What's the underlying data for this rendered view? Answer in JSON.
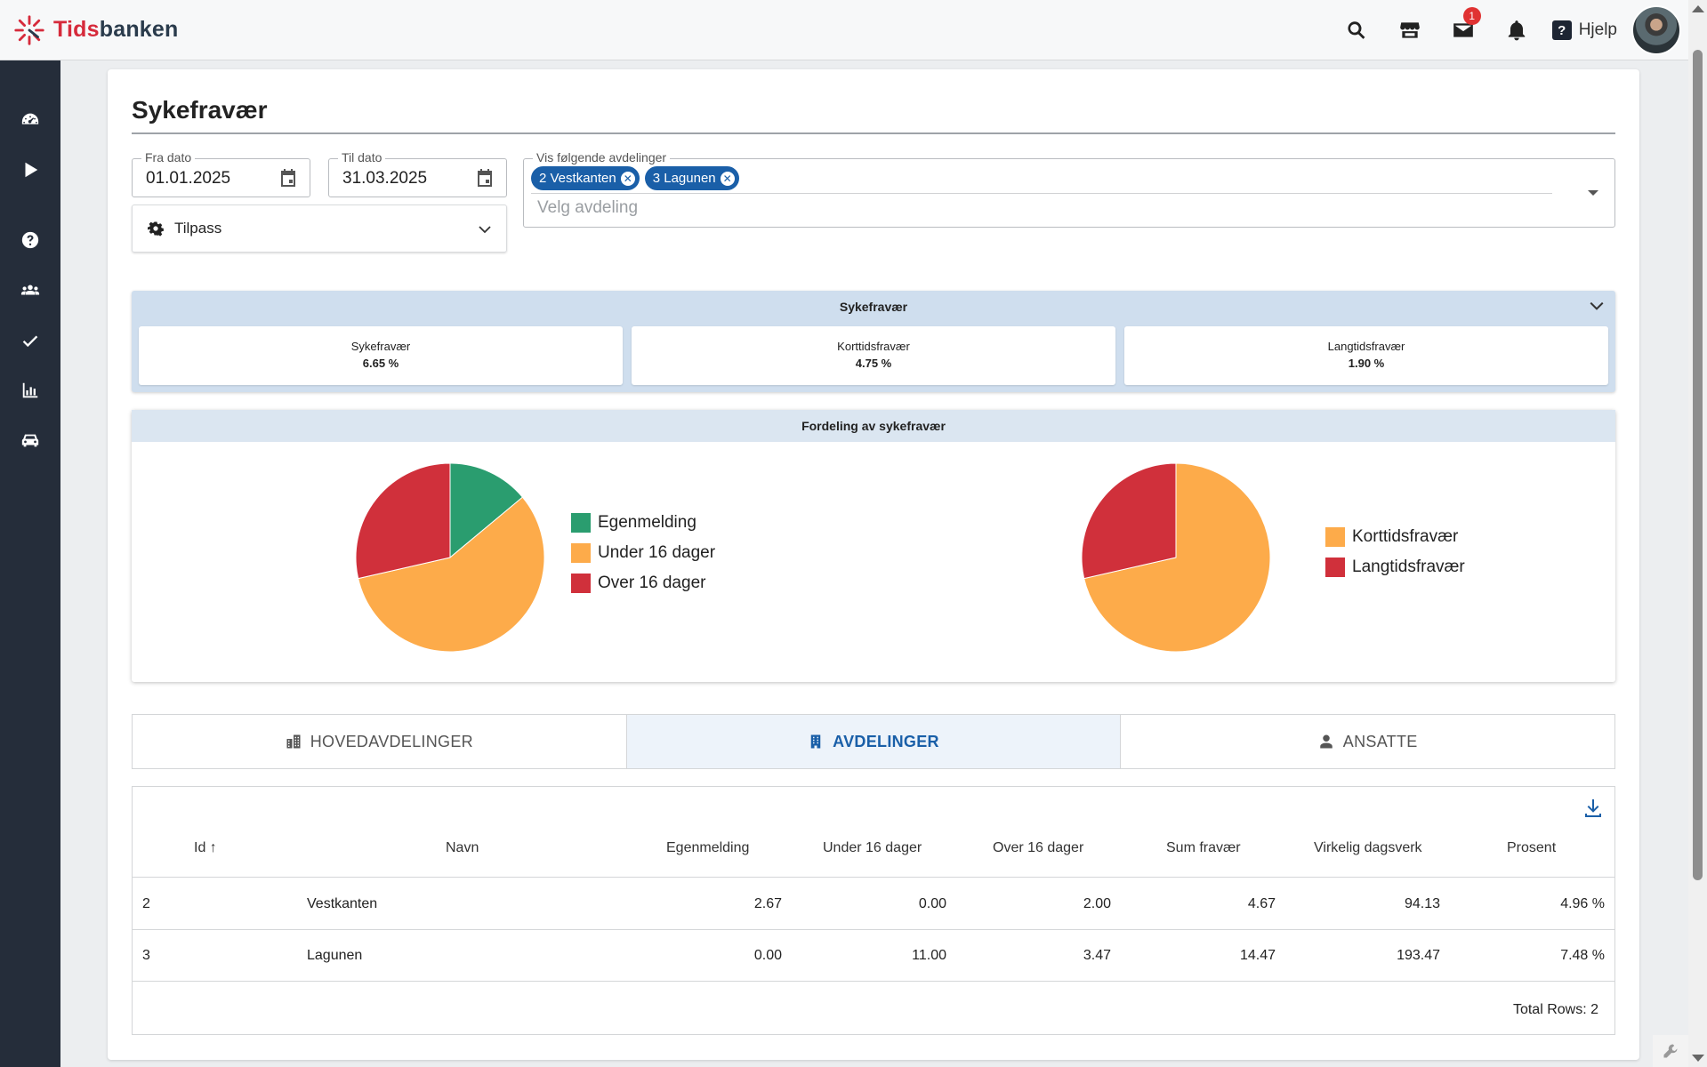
{
  "app": {
    "brand_part1": "Tids",
    "brand_part2": "banken",
    "help_label": "Hjelp",
    "mail_badge": "1"
  },
  "page": {
    "title": "Sykefravær"
  },
  "filters": {
    "from_label": "Fra dato",
    "from_value": "01.01.2025",
    "to_label": "Til dato",
    "to_value": "31.03.2025",
    "customize_label": "Tilpass",
    "departments_label": "Vis følgende avdelinger",
    "departments_placeholder": "Velg avdeling",
    "selected_departments": [
      "2 Vestkanten",
      "3 Lagunen"
    ]
  },
  "summary": {
    "header": "Sykefravær",
    "stats": [
      {
        "title": "Sykefravær",
        "value": "6.65 %"
      },
      {
        "title": "Korttidsfravær",
        "value": "4.75 %"
      },
      {
        "title": "Langtidsfravær",
        "value": "1.90 %"
      }
    ]
  },
  "distribution": {
    "header": "Fordeling av sykefravær"
  },
  "chart_data": [
    {
      "type": "pie",
      "categories": [
        "Egenmelding",
        "Under 16 dager",
        "Over 16 dager"
      ],
      "values": [
        2.67,
        11.0,
        5.47
      ],
      "colors": [
        "#2a9d6f",
        "#fdab4a",
        "#d0303b"
      ]
    },
    {
      "type": "pie",
      "categories": [
        "Korttidsfravær",
        "Langtidsfravær"
      ],
      "values": [
        4.75,
        1.9
      ],
      "colors": [
        "#fdab4a",
        "#d0303b"
      ]
    }
  ],
  "tabs": [
    {
      "label": "HOVEDAVDELINGER",
      "icon": "building-icon"
    },
    {
      "label": "AVDELINGER",
      "icon": "office-icon"
    },
    {
      "label": "ANSATTE",
      "icon": "user-icon"
    }
  ],
  "table": {
    "columns": [
      "Id",
      "Navn",
      "Egenmelding",
      "Under 16 dager",
      "Over 16 dager",
      "Sum fravær",
      "Virkelig dagsverk",
      "Prosent"
    ],
    "rows": [
      [
        "2",
        "Vestkanten",
        "2.67",
        "0.00",
        "2.00",
        "4.67",
        "94.13",
        "4.96 %"
      ],
      [
        "3",
        "Lagunen",
        "0.00",
        "11.00",
        "3.47",
        "14.47",
        "193.47",
        "7.48 %"
      ]
    ],
    "total_label": "Total Rows: 2"
  }
}
